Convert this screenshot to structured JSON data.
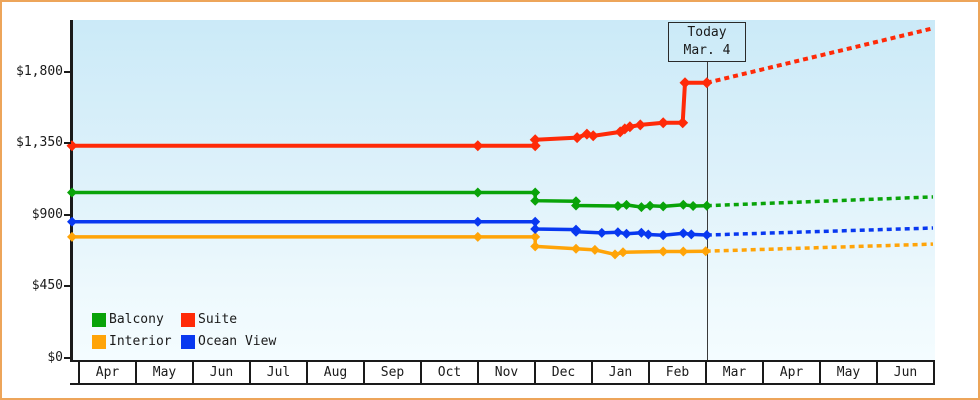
{
  "frame": {
    "border_color": "#eda55a"
  },
  "chart_data": {
    "type": "line",
    "title": "",
    "xlabel": "",
    "ylabel": "",
    "x_unit": "months, 0 = April 1 (first axis cell), 15 = end of second June cell",
    "x_axis": {
      "labels": [
        "Apr",
        "May",
        "Jun",
        "Jul",
        "Aug",
        "Sep",
        "Oct",
        "Nov",
        "Dec",
        "Jan",
        "Feb",
        "Mar",
        "Apr",
        "May",
        "Jun"
      ]
    },
    "y_axis": {
      "range": [
        0,
        2100
      ],
      "ticks": [
        {
          "value": 0,
          "label": "$0"
        },
        {
          "value": 450,
          "label": "$450"
        },
        {
          "value": 900,
          "label": "$900"
        },
        {
          "value": 1350,
          "label": "$1,350"
        },
        {
          "value": 1800,
          "label": "$1,800"
        }
      ]
    },
    "grid": false,
    "legend_position": "bottom-left inside plot",
    "today": {
      "label": "Today",
      "date": "Mar. 4",
      "m": 11.06
    },
    "series": [
      {
        "name": "Interior",
        "color": "#ffa408",
        "style": "solid-then-dashed-projection",
        "solid": [
          [
            0,
            760
          ],
          [
            7.07,
            760
          ],
          [
            8.07,
            760
          ],
          [
            8.07,
            700
          ],
          [
            8.78,
            686
          ],
          [
            9.11,
            678
          ],
          [
            9.46,
            650
          ],
          [
            9.6,
            663
          ],
          [
            10.3,
            668
          ],
          [
            10.65,
            668
          ],
          [
            11.04,
            670
          ]
        ],
        "projected": [
          [
            11.04,
            670
          ],
          [
            15,
            715
          ]
        ]
      },
      {
        "name": "Ocean View",
        "color": "#0838f0",
        "style": "solid-then-dashed-projection",
        "solid": [
          [
            0,
            855
          ],
          [
            7.07,
            855
          ],
          [
            8.07,
            855
          ],
          [
            8.07,
            810
          ],
          [
            8.78,
            806
          ],
          [
            8.78,
            793
          ],
          [
            9.23,
            785
          ],
          [
            9.51,
            790
          ],
          [
            9.66,
            780
          ],
          [
            9.92,
            786
          ],
          [
            10.04,
            775
          ],
          [
            10.3,
            770
          ],
          [
            10.65,
            783
          ],
          [
            10.79,
            776
          ],
          [
            11.06,
            772
          ]
        ],
        "projected": [
          [
            11.06,
            772
          ],
          [
            15,
            816
          ]
        ]
      },
      {
        "name": "Balcony",
        "color": "#09a309",
        "style": "solid-then-dashed-projection",
        "solid": [
          [
            0,
            1040
          ],
          [
            7.07,
            1040
          ],
          [
            8.07,
            1040
          ],
          [
            8.07,
            988
          ],
          [
            8.78,
            985
          ],
          [
            8.78,
            958
          ],
          [
            9.51,
            955
          ],
          [
            9.66,
            962
          ],
          [
            9.92,
            948
          ],
          [
            10.07,
            957
          ],
          [
            10.3,
            952
          ],
          [
            10.65,
            963
          ],
          [
            10.82,
            955
          ],
          [
            11.06,
            957
          ]
        ],
        "projected": [
          [
            11.06,
            957
          ],
          [
            15,
            1012
          ]
        ]
      },
      {
        "name": "Suite",
        "color": "#ff2a08",
        "style": "solid-then-dashed-projection",
        "solid": [
          [
            0,
            1335
          ],
          [
            7.07,
            1335
          ],
          [
            8.07,
            1335
          ],
          [
            8.07,
            1372
          ],
          [
            8.8,
            1386
          ],
          [
            8.97,
            1408
          ],
          [
            9.08,
            1397
          ],
          [
            9.55,
            1422
          ],
          [
            9.63,
            1441
          ],
          [
            9.72,
            1454
          ],
          [
            9.9,
            1466
          ],
          [
            10.3,
            1479
          ],
          [
            10.64,
            1479
          ],
          [
            10.68,
            1731
          ],
          [
            11.06,
            1731
          ]
        ],
        "projected": [
          [
            11.06,
            1731
          ],
          [
            15,
            2075
          ]
        ]
      }
    ]
  },
  "legend": {
    "items": [
      {
        "label": "Balcony",
        "color": "#09a309"
      },
      {
        "label": "Suite",
        "color": "#ff2a08"
      },
      {
        "label": "Interior",
        "color": "#ffa408"
      },
      {
        "label": "Ocean View",
        "color": "#0838f0"
      }
    ]
  }
}
